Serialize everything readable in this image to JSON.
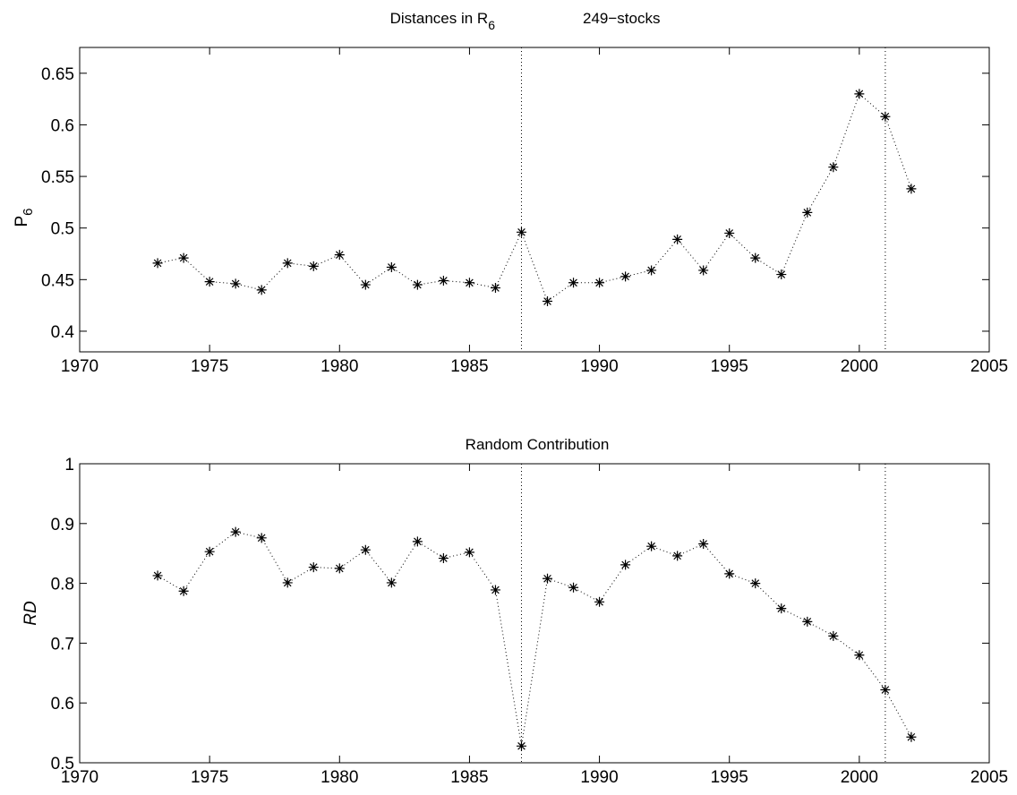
{
  "figure": {
    "background": "#ffffff",
    "line_color": "#000000"
  },
  "chart_data": [
    {
      "type": "line",
      "title_left": "Distances in R",
      "title_left_subscript": "6",
      "title_right": "249−stocks",
      "xlabel": "",
      "ylabel": "P",
      "ylabel_subscript": "6",
      "xlim": [
        1970,
        2005
      ],
      "ylim": [
        0.38,
        0.675
      ],
      "x_ticks": [
        1970,
        1975,
        1980,
        1985,
        1990,
        1995,
        2000,
        2005
      ],
      "x_tick_labels": [
        "1970",
        "1975",
        "1980",
        "1985",
        "1990",
        "1995",
        "2000",
        "2005"
      ],
      "y_ticks": [
        0.4,
        0.45,
        0.5,
        0.55,
        0.6,
        0.65
      ],
      "y_tick_labels": [
        "0.4",
        "0.45",
        "0.5",
        "0.55",
        "0.6",
        "0.65"
      ],
      "grid": false,
      "marker": "asterisk",
      "line_style": "dotted",
      "vertical_lines": [
        1987,
        2001
      ],
      "x": [
        1973,
        1974,
        1975,
        1976,
        1977,
        1978,
        1979,
        1980,
        1981,
        1982,
        1983,
        1984,
        1985,
        1986,
        1987,
        1988,
        1989,
        1990,
        1991,
        1992,
        1993,
        1994,
        1995,
        1996,
        1997,
        1998,
        1999,
        2000,
        2001,
        2002
      ],
      "y": [
        0.466,
        0.471,
        0.448,
        0.446,
        0.44,
        0.466,
        0.463,
        0.474,
        0.445,
        0.462,
        0.445,
        0.449,
        0.447,
        0.442,
        0.496,
        0.429,
        0.447,
        0.447,
        0.453,
        0.459,
        0.489,
        0.459,
        0.495,
        0.471,
        0.455,
        0.515,
        0.559,
        0.63,
        0.608,
        0.538
      ]
    },
    {
      "type": "line",
      "title_left": "Random Contribution",
      "title_left_subscript": "",
      "title_right": "",
      "xlabel": "",
      "ylabel": "RD",
      "ylabel_subscript": "",
      "xlim": [
        1970,
        2005
      ],
      "ylim": [
        0.5,
        1.0
      ],
      "x_ticks": [
        1970,
        1975,
        1980,
        1985,
        1990,
        1995,
        2000,
        2005
      ],
      "x_tick_labels": [
        "1970",
        "1975",
        "1980",
        "1985",
        "1990",
        "1995",
        "2000",
        "2005"
      ],
      "y_ticks": [
        0.5,
        0.6,
        0.7,
        0.8,
        0.9,
        1.0
      ],
      "y_tick_labels": [
        "0.5",
        "0.6",
        "0.7",
        "0.8",
        "0.9",
        "1"
      ],
      "grid": false,
      "marker": "asterisk",
      "line_style": "dotted",
      "vertical_lines": [
        1987,
        2001
      ],
      "x": [
        1973,
        1974,
        1975,
        1976,
        1977,
        1978,
        1979,
        1980,
        1981,
        1982,
        1983,
        1984,
        1985,
        1986,
        1987,
        1988,
        1989,
        1990,
        1991,
        1992,
        1993,
        1994,
        1995,
        1996,
        1997,
        1998,
        1999,
        2000,
        2001,
        2002
      ],
      "y": [
        0.813,
        0.787,
        0.853,
        0.886,
        0.876,
        0.801,
        0.827,
        0.825,
        0.856,
        0.801,
        0.87,
        0.842,
        0.852,
        0.789,
        0.528,
        0.808,
        0.793,
        0.769,
        0.831,
        0.862,
        0.846,
        0.866,
        0.816,
        0.8,
        0.758,
        0.736,
        0.712,
        0.68,
        0.622,
        0.543
      ]
    }
  ]
}
